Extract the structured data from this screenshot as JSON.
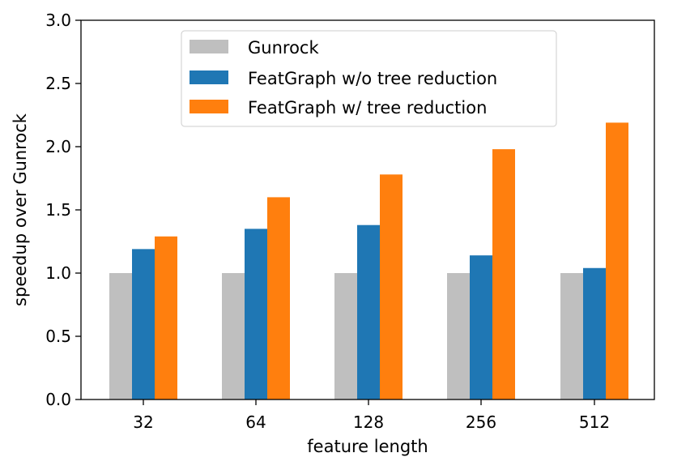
{
  "chart_data": {
    "type": "bar",
    "categories": [
      "32",
      "64",
      "128",
      "256",
      "512"
    ],
    "series": [
      {
        "name": "Gunrock",
        "values": [
          1.0,
          1.0,
          1.0,
          1.0,
          1.0
        ],
        "color": "#bfbfbf"
      },
      {
        "name": "FeatGraph w/o tree reduction",
        "values": [
          1.19,
          1.35,
          1.38,
          1.14,
          1.04
        ],
        "color": "#1f77b4"
      },
      {
        "name": "FeatGraph w/ tree reduction",
        "values": [
          1.29,
          1.6,
          1.78,
          1.98,
          2.19
        ],
        "color": "#ff7f0e"
      }
    ],
    "xlabel": "feature length",
    "ylabel": "speedup over Gunrock",
    "ylim": [
      0,
      3.0
    ],
    "yticks": [
      "0.0",
      "0.5",
      "1.0",
      "1.5",
      "2.0",
      "2.5",
      "3.0"
    ],
    "grid": false,
    "legend_position": "top-center"
  }
}
